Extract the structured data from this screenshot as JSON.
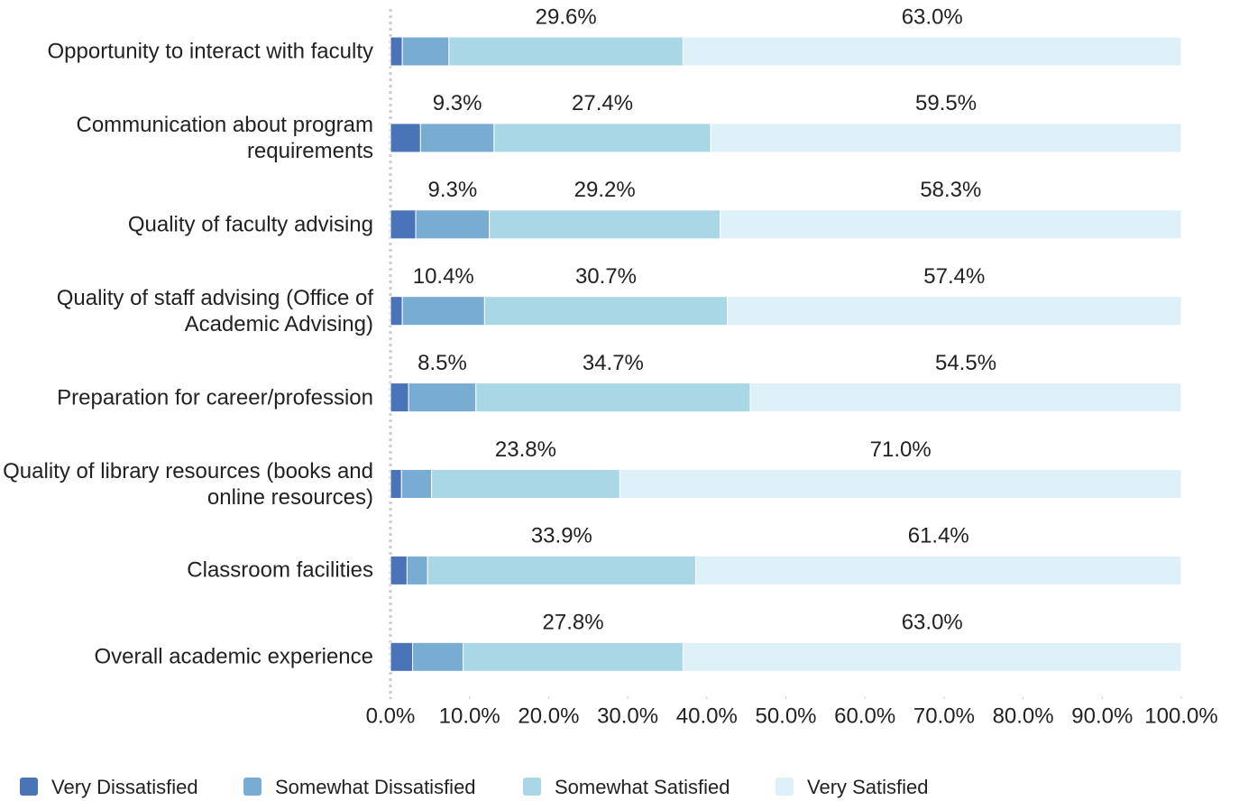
{
  "chart_data": {
    "type": "stacked-bar-horizontal",
    "categories": [
      "Opportunity to interact with faculty",
      "Communication about program requirements",
      "Quality of faculty advising",
      "Quality of staff advising (Office of Academic Advising)",
      "Preparation for career/profession",
      "Quality of library resources (books and online resources)",
      "Classroom facilities",
      "Overall academic experience"
    ],
    "series": [
      {
        "name": "Very Dissatisfied",
        "color": "#4a74b8",
        "values": [
          1.5,
          3.8,
          3.2,
          1.5,
          2.3,
          1.4,
          2.1,
          2.8
        ],
        "value_labels": [
          null,
          null,
          null,
          null,
          null,
          null,
          null,
          null
        ]
      },
      {
        "name": "Somewhat Dissatisfied",
        "color": "#79acd2",
        "values": [
          5.9,
          9.3,
          9.3,
          10.4,
          8.5,
          3.8,
          2.6,
          6.4
        ],
        "value_labels": [
          null,
          "9.3%",
          "9.3%",
          "10.4%",
          "8.5%",
          null,
          null,
          null
        ]
      },
      {
        "name": "Somewhat Satisfied",
        "color": "#a9d7e6",
        "values": [
          29.6,
          27.4,
          29.2,
          30.7,
          34.7,
          23.8,
          33.9,
          27.8
        ],
        "value_labels": [
          "29.6%",
          "27.4%",
          "29.2%",
          "30.7%",
          "34.7%",
          "23.8%",
          "33.9%",
          "27.8%"
        ]
      },
      {
        "name": "Very Satisfied",
        "color": "#dff1f8",
        "values": [
          63.0,
          59.5,
          58.3,
          57.4,
          54.5,
          71.0,
          61.4,
          63.0
        ],
        "value_labels": [
          "63.0%",
          "59.5%",
          "58.3%",
          "57.4%",
          "54.5%",
          "71.0%",
          "61.4%",
          "63.0%"
        ]
      }
    ],
    "xlim": [
      0,
      100
    ],
    "xticks": [
      {
        "value": 0,
        "label": "0.0%"
      },
      {
        "value": 10,
        "label": "10.0%"
      },
      {
        "value": 20,
        "label": "20.0%"
      },
      {
        "value": 30,
        "label": "30.0%"
      },
      {
        "value": 40,
        "label": "40.0%"
      },
      {
        "value": 50,
        "label": "50.0%"
      },
      {
        "value": 60,
        "label": "60.0%"
      },
      {
        "value": 70,
        "label": "70.0%"
      },
      {
        "value": 80,
        "label": "80.0%"
      },
      {
        "value": 90,
        "label": "90.0%"
      },
      {
        "value": 100,
        "label": "100.0%"
      }
    ],
    "grid": false,
    "legend": "bottom"
  }
}
